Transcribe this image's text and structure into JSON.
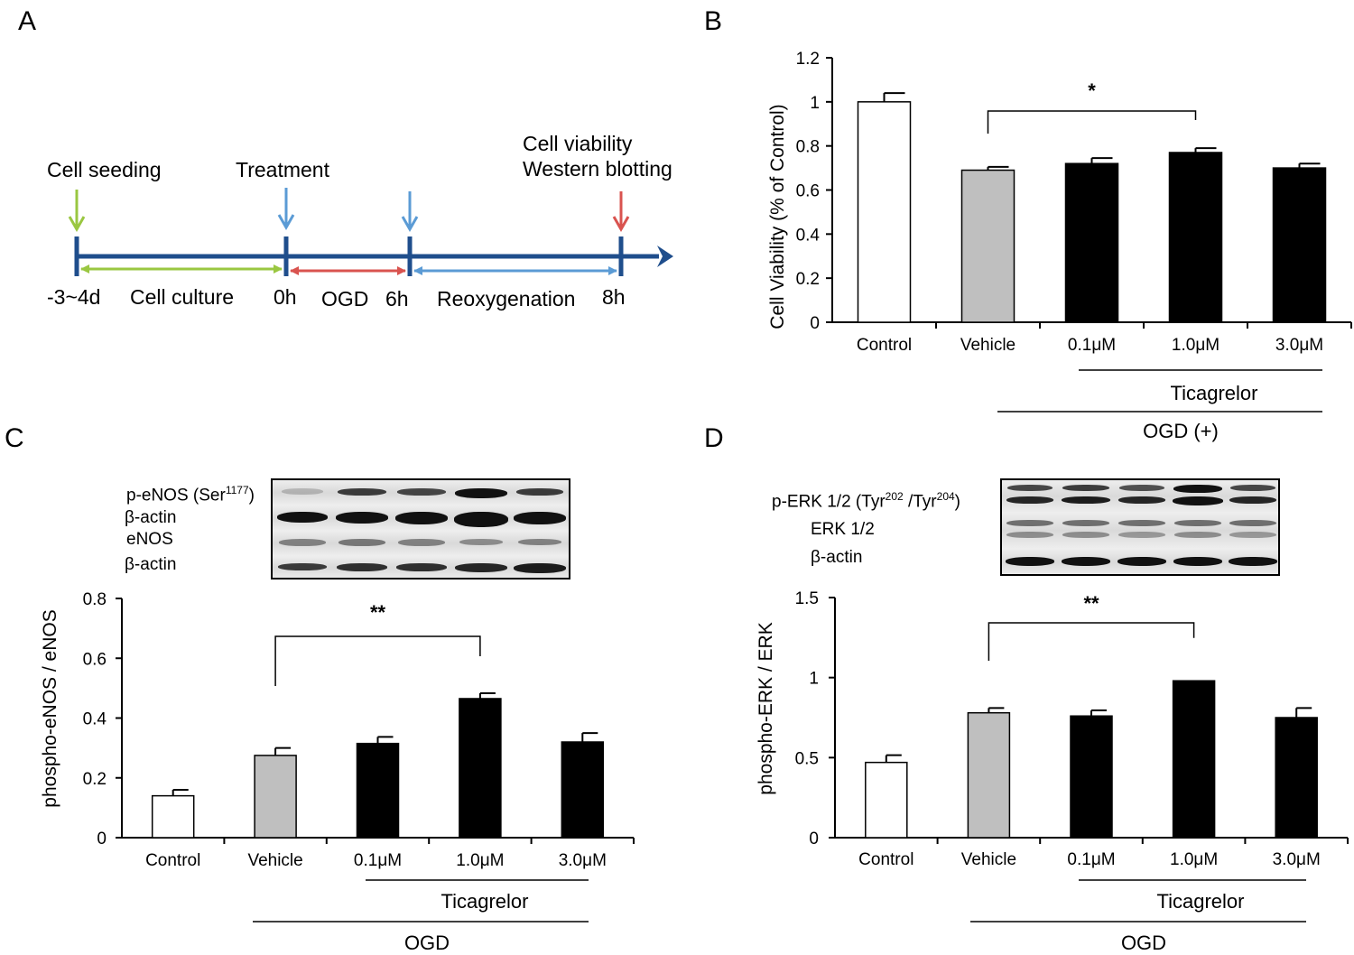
{
  "panel_labels": [
    "A",
    "B",
    "C",
    "D"
  ],
  "timeline": {
    "top_labels": {
      "cell_seeding": "Cell seeding",
      "treatment": "Treatment",
      "cell_viability": "Cell viability",
      "western_blotting": "Western blotting"
    },
    "bottom_labels": {
      "start": "-3~4d",
      "cell_culture": "Cell culture",
      "t0": "0h",
      "ogd": "OGD",
      "t6": "6h",
      "reoxygenation": "Reoxygenation",
      "t8": "8h"
    },
    "colors": {
      "axis": "#1f4e8c",
      "culture": "#9ac741",
      "ogd": "#d9534f",
      "reoxy": "#5b9bd5"
    }
  },
  "blots": {
    "C": {
      "labels": [
        "p-eNOS (Ser",
        "1177",
        ")",
        "β-actin",
        "eNOS",
        "β-actin"
      ]
    },
    "D": {
      "labels": [
        "p-ERK 1/2 (Tyr",
        "202",
        " /Tyr",
        "204",
        ")",
        "ERK 1/2",
        "β-actin"
      ]
    }
  },
  "chart_data": [
    {
      "panel": "B",
      "type": "bar",
      "title": "",
      "xlabel": "",
      "ylabel": "Cell Viability (% of Control)",
      "categories": [
        "Control",
        "Vehicle",
        "0.1μM",
        "1.0μM",
        "3.0μM"
      ],
      "values": [
        1.0,
        0.69,
        0.72,
        0.77,
        0.7
      ],
      "errors": [
        0.04,
        0.015,
        0.025,
        0.02,
        0.02
      ],
      "bar_colors": [
        "#ffffff",
        "#bfbfbf",
        "#000000",
        "#000000",
        "#000000"
      ],
      "ylim": [
        0,
        1.2
      ],
      "yticks": [
        0,
        0.2,
        0.4,
        0.6,
        0.8,
        1,
        1.2
      ],
      "ytick_labels": [
        "0",
        "0.2",
        "0.4",
        "0.6",
        "0.8",
        "1",
        "1.2"
      ],
      "significance": {
        "from": 1,
        "to": 3,
        "label": "*"
      },
      "group_labels": [
        "Ticagrelor",
        "OGD (+)"
      ]
    },
    {
      "panel": "C",
      "type": "bar",
      "title": "",
      "xlabel": "",
      "ylabel": "phospho-eNOS / eNOS",
      "categories": [
        "Control",
        "Vehicle",
        "0.1μM",
        "1.0μM",
        "3.0μM"
      ],
      "values": [
        0.14,
        0.275,
        0.315,
        0.465,
        0.32
      ],
      "errors": [
        0.02,
        0.025,
        0.022,
        0.018,
        0.03
      ],
      "bar_colors": [
        "#ffffff",
        "#bfbfbf",
        "#000000",
        "#000000",
        "#000000"
      ],
      "ylim": [
        0,
        0.8
      ],
      "yticks": [
        0,
        0.2,
        0.4,
        0.6,
        0.8
      ],
      "ytick_labels": [
        "0",
        "0.2",
        "0.4",
        "0.6",
        "0.8"
      ],
      "significance": {
        "from": 1,
        "to": 3,
        "label": "**"
      },
      "group_labels": [
        "Ticagrelor",
        "OGD"
      ]
    },
    {
      "panel": "D",
      "type": "bar",
      "title": "",
      "xlabel": "",
      "ylabel": "phospho-ERK / ERK",
      "categories": [
        "Control",
        "Vehicle",
        "0.1μM",
        "1.0μM",
        "3.0μM"
      ],
      "values": [
        0.47,
        0.78,
        0.76,
        0.98,
        0.75
      ],
      "errors": [
        0.045,
        0.03,
        0.035,
        0.0,
        0.06
      ],
      "bar_colors": [
        "#ffffff",
        "#bfbfbf",
        "#000000",
        "#000000",
        "#000000"
      ],
      "ylim": [
        0,
        1.5
      ],
      "yticks": [
        0,
        0.5,
        1,
        1.5
      ],
      "ytick_labels": [
        "0",
        "0.5",
        "1",
        "1.5"
      ],
      "significance": {
        "from": 1,
        "to": 3,
        "label": "**"
      },
      "group_labels": [
        "Ticagrelor",
        "OGD"
      ]
    }
  ]
}
